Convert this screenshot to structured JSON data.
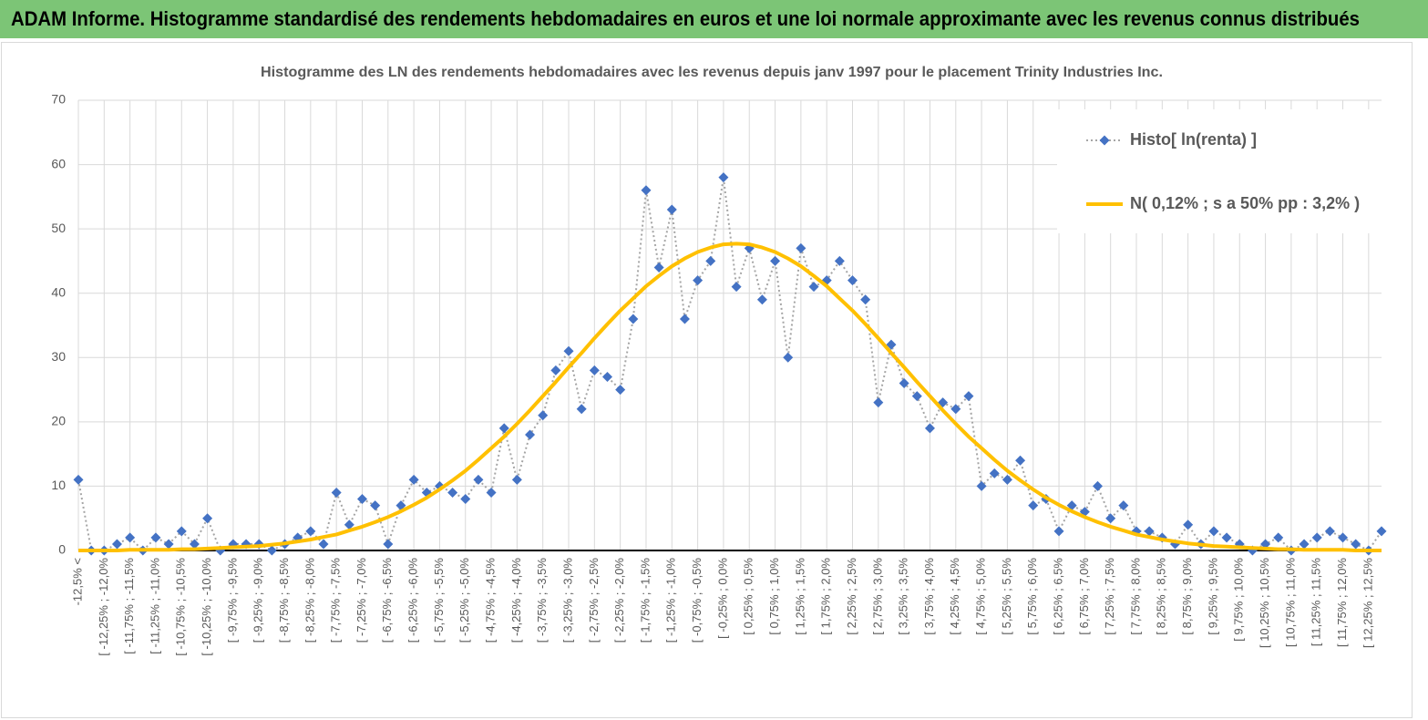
{
  "header": {
    "title": "ADAM Informe. Histogramme standardisé des rendements hebdomadaires en euros et une loi normale approximante avec les revenus connus distribués"
  },
  "chart_data": {
    "type": "line",
    "title": "Histogramme des LN des rendements hebdomadaires avec les revenus depuis janv 1997 pour le placement Trinity Industries Inc.",
    "categories": [
      "-12,5% <",
      null,
      "[ -12,25% ; -12,0%",
      null,
      "[ -11,75% ; -11,5%",
      null,
      "[ -11,25% ; -11,0%",
      null,
      "[ -10,75% ; -10,5%",
      null,
      "[ -10,25% ; -10,0%",
      null,
      "[ -9,75% ; -9,5%",
      null,
      "[ -9,25% ; -9,0%",
      null,
      "[ -8,75% ; -8,5%",
      null,
      "[ -8,25% ; -8,0%",
      null,
      "[ -7,75% ; -7,5%",
      null,
      "[ -7,25% ; -7,0%",
      null,
      "[ -6,75% ; -6,5%",
      null,
      "[ -6,25% ; -6,0%",
      null,
      "[ -5,75% ; -5,5%",
      null,
      "[ -5,25% ; -5,0%",
      null,
      "[ -4,75% ; -4,5%",
      null,
      "[ -4,25% ; -4,0%",
      null,
      "[ -3,75% ; -3,5%",
      null,
      "[ -3,25% ; -3,0%",
      null,
      "[ -2,75% ; -2,5%",
      null,
      "[ -2,25% ; -2,0%",
      null,
      "[ -1,75% ; -1,5%",
      null,
      "[ -1,25% ; -1,0%",
      null,
      "[ -0,75% ; -0,5%",
      null,
      "[ -0,25% ; 0,0%",
      null,
      "[ 0,25% ; 0,5%",
      null,
      "[ 0,75% ; 1,0%",
      null,
      "[ 1,25% ; 1,5%",
      null,
      "[ 1,75% ; 2,0%",
      null,
      "[ 2,25% ; 2,5%",
      null,
      "[ 2,75% ; 3,0%",
      null,
      "[ 3,25% ; 3,5%",
      null,
      "[ 3,75% ; 4,0%",
      null,
      "[ 4,25% ; 4,5%",
      null,
      "[ 4,75% ; 5,0%",
      null,
      "[ 5,25% ; 5,5%",
      null,
      "[ 5,75% ; 6,0%",
      null,
      "[ 6,25% ; 6,5%",
      null,
      "[ 6,75% ; 7,0%",
      null,
      "[ 7,25% ; 7,5%",
      null,
      "[ 7,75% ; 8,0%",
      null,
      "[ 8,25% ; 8,5%",
      null,
      "[ 8,75% ; 9,0%",
      null,
      "[ 9,25% ; 9,5%",
      null,
      "[ 9,75% ; 10,0%",
      null,
      "[ 10,25% ; 10,5%",
      null,
      "[ 10,75% ; 11,0%",
      null,
      "[ 11,25% ; 11,5%",
      null,
      "[ 11,75% ; 12,0%",
      null,
      "[ 12,25% ; 12,5%",
      null
    ],
    "series": [
      {
        "name": "Histo[ ln(renta) ]",
        "color": "#4472c4",
        "line_color": "#a5a5a5",
        "marker": "diamond",
        "line_style": "dotted",
        "values": [
          11,
          0,
          0,
          1,
          2,
          0,
          2,
          1,
          3,
          1,
          5,
          0,
          1,
          1,
          1,
          0,
          1,
          2,
          3,
          1,
          9,
          4,
          8,
          7,
          1,
          7,
          11,
          9,
          10,
          9,
          8,
          11,
          9,
          19,
          11,
          18,
          21,
          28,
          31,
          22,
          28,
          27,
          25,
          36,
          56,
          44,
          53,
          36,
          42,
          45,
          58,
          41,
          47,
          39,
          45,
          30,
          47,
          41,
          42,
          45,
          42,
          39,
          23,
          32,
          26,
          24,
          19,
          23,
          22,
          24,
          10,
          12,
          11,
          14,
          7,
          8,
          3,
          7,
          6,
          10,
          5,
          7,
          3,
          3,
          2,
          1,
          4,
          1,
          3,
          2,
          1,
          0,
          1,
          2,
          0,
          1,
          2,
          3,
          2,
          1,
          0,
          3
        ]
      },
      {
        "name": "N( 0,12% ; s a 50% pp : 3,2% )",
        "color": "#ffc000",
        "line_color": "#ffc000",
        "marker": "none",
        "line_style": "solid",
        "values": [
          0.0,
          0.0,
          0.0,
          0.0,
          0.1,
          0.1,
          0.1,
          0.1,
          0.2,
          0.2,
          0.3,
          0.4,
          0.5,
          0.6,
          0.7,
          0.9,
          1.1,
          1.4,
          1.7,
          2.1,
          2.5,
          3.1,
          3.7,
          4.4,
          5.2,
          6.1,
          7.1,
          8.2,
          9.5,
          10.9,
          12.4,
          14.1,
          15.9,
          17.7,
          19.7,
          21.8,
          24.0,
          26.2,
          28.5,
          30.7,
          33.0,
          35.2,
          37.3,
          39.2,
          41.1,
          42.7,
          44.2,
          45.4,
          46.4,
          47.1,
          47.6,
          47.7,
          47.6,
          47.1,
          46.4,
          45.4,
          44.2,
          42.7,
          41.1,
          39.2,
          37.3,
          35.2,
          33.0,
          30.7,
          28.5,
          26.2,
          24.0,
          21.8,
          19.7,
          17.7,
          15.9,
          14.1,
          12.4,
          10.9,
          9.5,
          8.2,
          7.1,
          6.1,
          5.2,
          4.4,
          3.7,
          3.1,
          2.5,
          2.1,
          1.7,
          1.4,
          1.1,
          0.9,
          0.7,
          0.6,
          0.5,
          0.4,
          0.3,
          0.2,
          0.2,
          0.1,
          0.1,
          0.1,
          0.1,
          0.0,
          0.0,
          0.0
        ]
      }
    ],
    "ylim": [
      0,
      70
    ],
    "yticks": [
      0,
      10,
      20,
      30,
      40,
      50,
      60,
      70
    ],
    "grid": true,
    "legend": "top-right"
  }
}
